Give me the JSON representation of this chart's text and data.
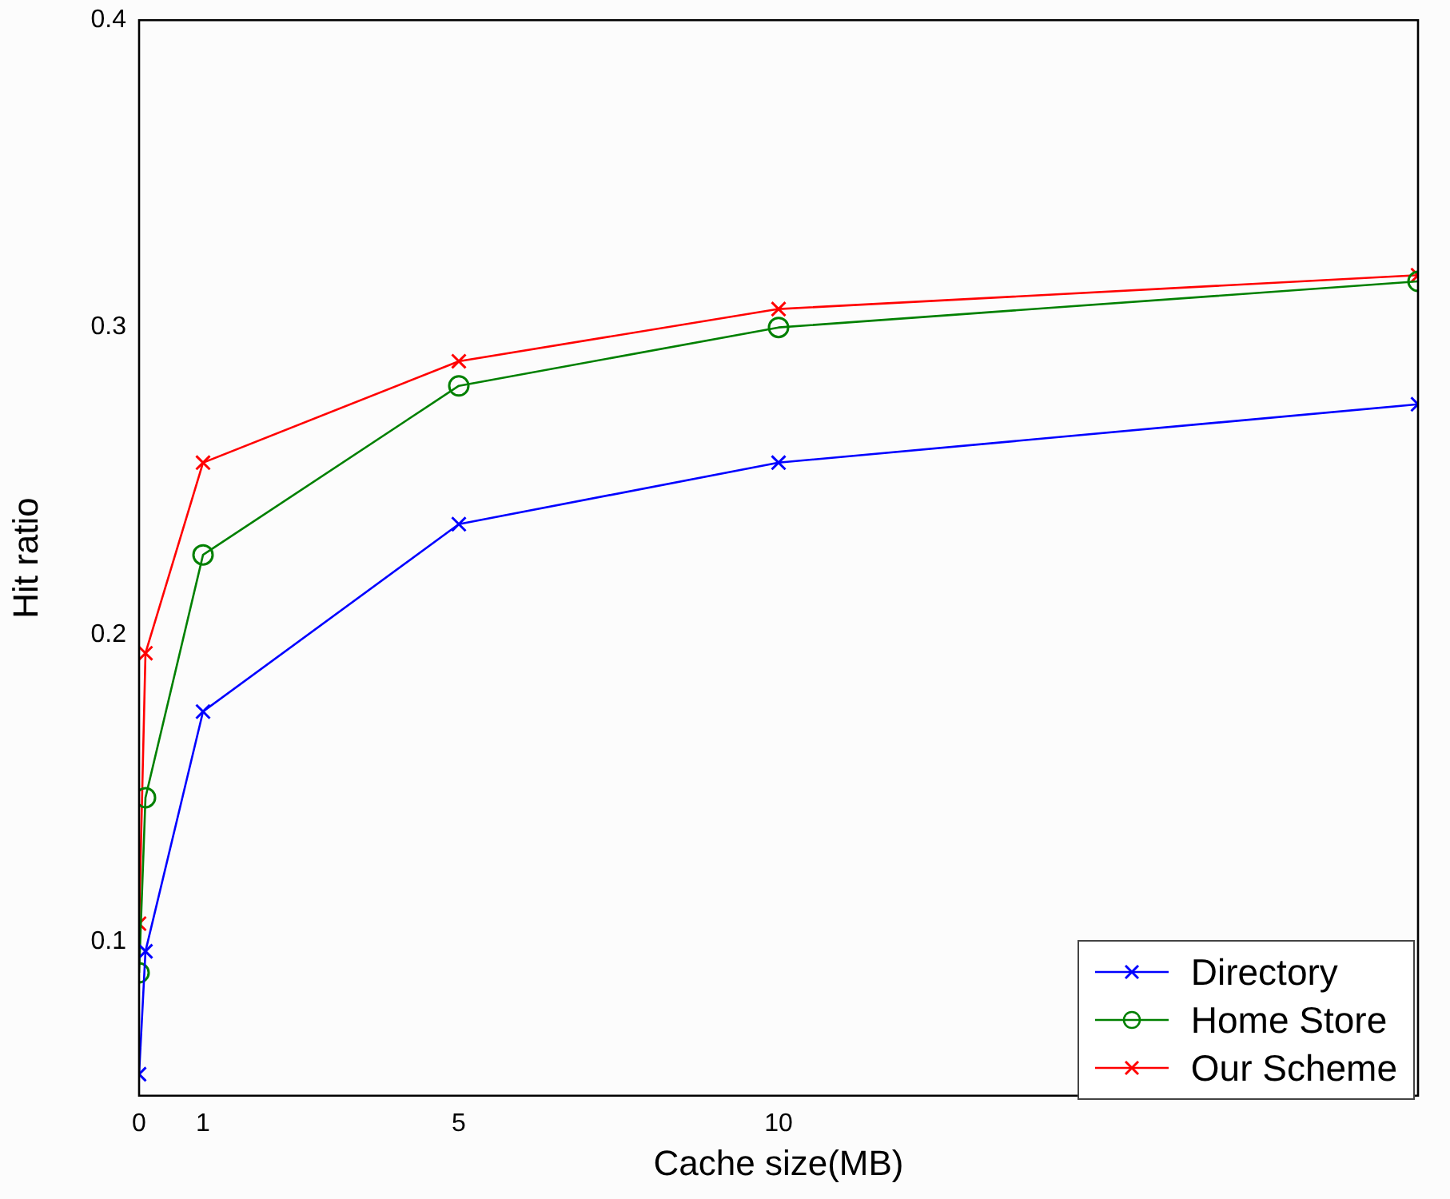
{
  "chart_data": {
    "type": "line",
    "xlabel": "Cache size(MB)",
    "ylabel": "Hit ratio",
    "xlim": [
      0,
      20
    ],
    "xticks": [
      0,
      1,
      5,
      10
    ],
    "ylim": [
      0.05,
      0.4
    ],
    "yticks": [
      {
        "value": 0.1,
        "label": "0.1"
      },
      {
        "value": 0.2,
        "label": "0.2"
      },
      {
        "value": 0.3,
        "label": "0.3"
      },
      {
        "value": 0.4,
        "label": "0.4"
      }
    ],
    "grid": false,
    "legend": "bottom right",
    "line_style": "solid",
    "series": [
      {
        "name": "Directory",
        "color": "#0000ff",
        "marker": "cross",
        "x": [
          0,
          0.1,
          1,
          5,
          10,
          20
        ],
        "values": [
          0.057,
          0.097,
          0.175,
          0.236,
          0.256,
          0.275
        ]
      },
      {
        "name": "Home Store",
        "color": "#008000",
        "marker": "circle",
        "x": [
          0,
          0.1,
          1,
          5,
          10,
          20
        ],
        "values": [
          0.09,
          0.147,
          0.226,
          0.281,
          0.3,
          0.315
        ]
      },
      {
        "name": "Our Scheme",
        "color": "#ff0000",
        "marker": "cross",
        "x": [
          0,
          0.1,
          1,
          5,
          10,
          20
        ],
        "values": [
          0.106,
          0.194,
          0.256,
          0.289,
          0.306,
          0.317
        ]
      }
    ]
  }
}
